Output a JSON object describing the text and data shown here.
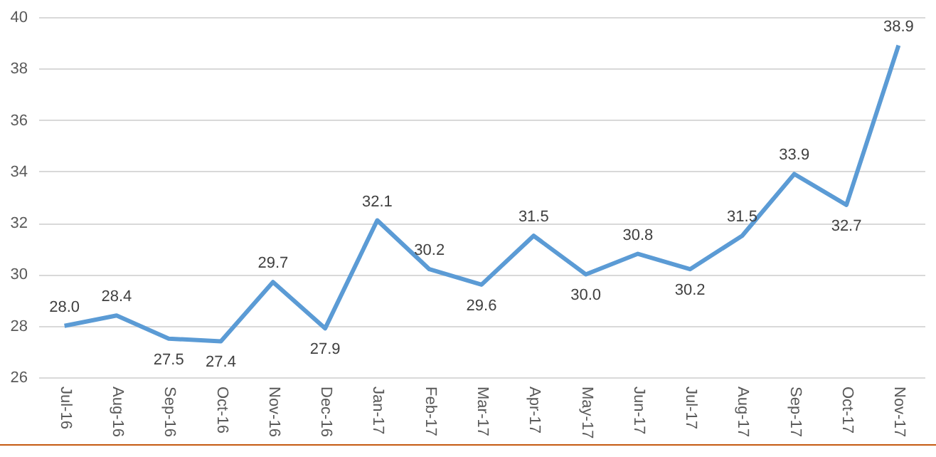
{
  "chart_data": {
    "type": "line",
    "categories": [
      "Jul-16",
      "Aug-16",
      "Sep-16",
      "Oct-16",
      "Nov-16",
      "Dec-16",
      "Jan-17",
      "Feb-17",
      "Mar-17",
      "Apr-17",
      "May-17",
      "Jun-17",
      "Jul-17",
      "Aug-17",
      "Sep-17",
      "Oct-17",
      "Nov-17"
    ],
    "series": [
      {
        "color": "#5b9bd5",
        "values": [
          28.0,
          28.4,
          27.5,
          27.4,
          29.7,
          27.9,
          32.1,
          30.2,
          29.6,
          31.5,
          30.0,
          30.8,
          30.2,
          31.5,
          33.9,
          32.7,
          38.9
        ],
        "value_labels": [
          "28.0",
          "28.4",
          "27.5",
          "27.4",
          "29.7",
          "27.9",
          "32.1",
          "30.2",
          "29.6",
          "31.5",
          "30.0",
          "30.8",
          "30.2",
          "31.5",
          "33.9",
          "32.7",
          "38.9"
        ]
      }
    ],
    "ylim": [
      26,
      40
    ],
    "yticks": [
      26,
      28,
      30,
      32,
      34,
      36,
      38,
      40
    ],
    "grid": "y",
    "marker": "none",
    "line_style": "solid"
  }
}
